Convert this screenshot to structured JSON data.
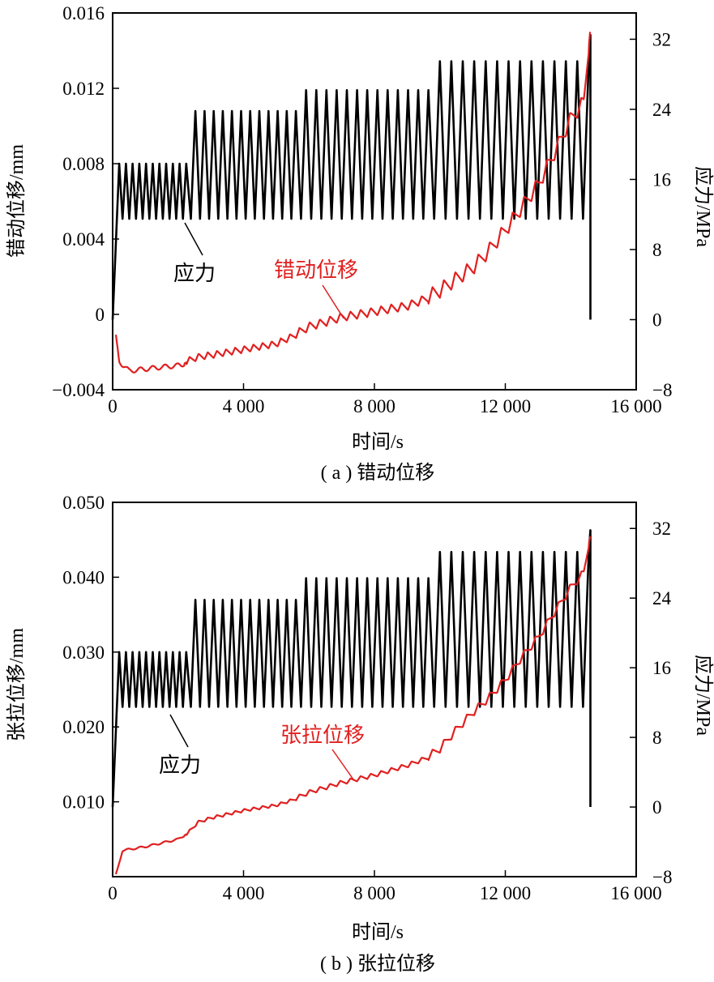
{
  "colors": {
    "stress": "#000000",
    "displacement": "#e02020",
    "axis": "#000000"
  },
  "panels": [
    {
      "caption": "( a ) 错动位移",
      "chart_data": {
        "type": "line",
        "xlabel": "时间/s",
        "ylabel_left": "错动位移/mm",
        "ylabel_right": "应力/MPa",
        "xlim": [
          0,
          16000
        ],
        "ylim_left": [
          -0.004,
          0.016
        ],
        "ylim_right": [
          -8,
          35
        ],
        "xticks": [
          0,
          4000,
          8000,
          12000,
          16000
        ],
        "xtick_labels": [
          "0",
          "4 000",
          "8 000",
          "12 000",
          "16 000"
        ],
        "yticks_left": [
          -0.004,
          0,
          0.004,
          0.008,
          0.012,
          0.016
        ],
        "ytick_labels_left": [
          "−0.004",
          "0",
          "0.004",
          "0.008",
          "0.012",
          "0.016"
        ],
        "yticks_right": [
          -8,
          0,
          8,
          16,
          24,
          32
        ],
        "ytick_labels_right": [
          "−8",
          "0",
          "8",
          "16",
          "24",
          "32"
        ],
        "annotations": {
          "stress": "应力",
          "displacement": "错动位移"
        },
        "series": [
          {
            "axis": "right",
            "color": "#000000",
            "x_start": 0,
            "ramp_end": 200,
            "t_end": 14600,
            "unload_to": 0,
            "final_peak": 32.5,
            "low": 11.5,
            "stages": [
              {
                "start": 200,
                "end": 2250,
                "high": 17.8,
                "cycles": 10
              },
              {
                "start": 2250,
                "end": 5600,
                "high": 23.8,
                "cycles": 12
              },
              {
                "start": 5600,
                "end": 9650,
                "high": 26.2,
                "cycles": 13
              },
              {
                "start": 9650,
                "end": 14550,
                "high": 29.5,
                "cycles": 14
              }
            ]
          },
          {
            "axis": "left",
            "color": "#e02020",
            "x_start": 100,
            "x_end": 14600,
            "knots_x": [
              100,
              200,
              500,
              1000,
              1500,
              2100,
              2300,
              2600,
              3000,
              4000,
              5000,
              5500,
              6000,
              7000,
              8000,
              9000,
              9600,
              10000,
              10500,
              11000,
              11500,
              12000,
              12500,
              13000,
              13500,
              14000,
              14400,
              14600
            ],
            "knots_y": [
              -0.0012,
              -0.0025,
              -0.003,
              -0.0029,
              -0.0028,
              -0.0027,
              -0.0025,
              -0.0023,
              -0.0022,
              -0.0019,
              -0.0016,
              -0.0012,
              -0.0007,
              -0.0002,
              0.0001,
              0.0004,
              0.0008,
              0.0012,
              0.0018,
              0.0024,
              0.0033,
              0.0044,
              0.0056,
              0.0068,
              0.0085,
              0.0103,
              0.0112,
              0.0152
            ],
            "ripple": [
              {
                "start": 2250,
                "end": 5600,
                "amp": 0.00035,
                "cycles": 12
              },
              {
                "start": 5600,
                "end": 9650,
                "amp": 0.00045,
                "cycles": 13
              },
              {
                "start": 9650,
                "end": 14550,
                "amp": 0.0008,
                "cycles": 14
              }
            ]
          }
        ]
      }
    },
    {
      "caption": "( b ) 张拉位移",
      "chart_data": {
        "type": "line",
        "xlabel": "时间/s",
        "ylabel_left": "张拉位移/mm",
        "ylabel_right": "应力/MPa",
        "xlim": [
          0,
          16000
        ],
        "ylim_left": [
          0,
          0.05
        ],
        "ylim_right": [
          -8,
          35
        ],
        "xticks": [
          0,
          4000,
          8000,
          12000,
          16000
        ],
        "xtick_labels": [
          "0",
          "4 000",
          "8 000",
          "12 000",
          "16 000"
        ],
        "yticks_left": [
          0.01,
          0.02,
          0.03,
          0.04,
          0.05
        ],
        "ytick_labels_left": [
          "0.010",
          "0.020",
          "0.030",
          "0.040",
          "0.050"
        ],
        "yticks_right": [
          -8,
          0,
          8,
          16,
          24,
          32
        ],
        "ytick_labels_right": [
          "−8",
          "0",
          "8",
          "16",
          "24",
          "32"
        ],
        "annotations": {
          "stress": "应力",
          "displacement": "张拉位移"
        },
        "series": [
          {
            "axis": "right",
            "color": "#000000",
            "x_start": 0,
            "ramp_end": 200,
            "t_end": 14600,
            "unload_to": 0,
            "final_peak": 31.8,
            "low": 11.5,
            "stages": [
              {
                "start": 200,
                "end": 2250,
                "high": 17.8,
                "cycles": 10
              },
              {
                "start": 2250,
                "end": 5600,
                "high": 23.8,
                "cycles": 12
              },
              {
                "start": 5600,
                "end": 9650,
                "high": 26.3,
                "cycles": 13
              },
              {
                "start": 9650,
                "end": 14550,
                "high": 29.3,
                "cycles": 14
              }
            ]
          },
          {
            "axis": "left",
            "color": "#e02020",
            "x_start": 100,
            "x_end": 14600,
            "knots_x": [
              100,
              300,
              1000,
              2000,
              2300,
              2600,
              3000,
              4000,
              5000,
              5500,
              6000,
              7000,
              8000,
              9000,
              9600,
              10000,
              10500,
              11000,
              11500,
              12000,
              12500,
              13000,
              13500,
              14000,
              14400,
              14600
            ],
            "knots_y": [
              0.0002,
              0.0035,
              0.004,
              0.005,
              0.0058,
              0.0072,
              0.0078,
              0.0088,
              0.0095,
              0.0102,
              0.0112,
              0.0125,
              0.0135,
              0.0148,
              0.0158,
              0.017,
              0.0195,
              0.0218,
              0.0238,
              0.0262,
              0.0292,
              0.0318,
              0.0352,
              0.0385,
              0.0405,
              0.0457
            ],
            "ripple": [
              {
                "start": 2250,
                "end": 5600,
                "amp": 0.0004,
                "cycles": 12
              },
              {
                "start": 5600,
                "end": 9650,
                "amp": 0.0006,
                "cycles": 13
              },
              {
                "start": 9650,
                "end": 14550,
                "amp": 0.0011,
                "cycles": 14
              }
            ]
          }
        ]
      }
    }
  ]
}
